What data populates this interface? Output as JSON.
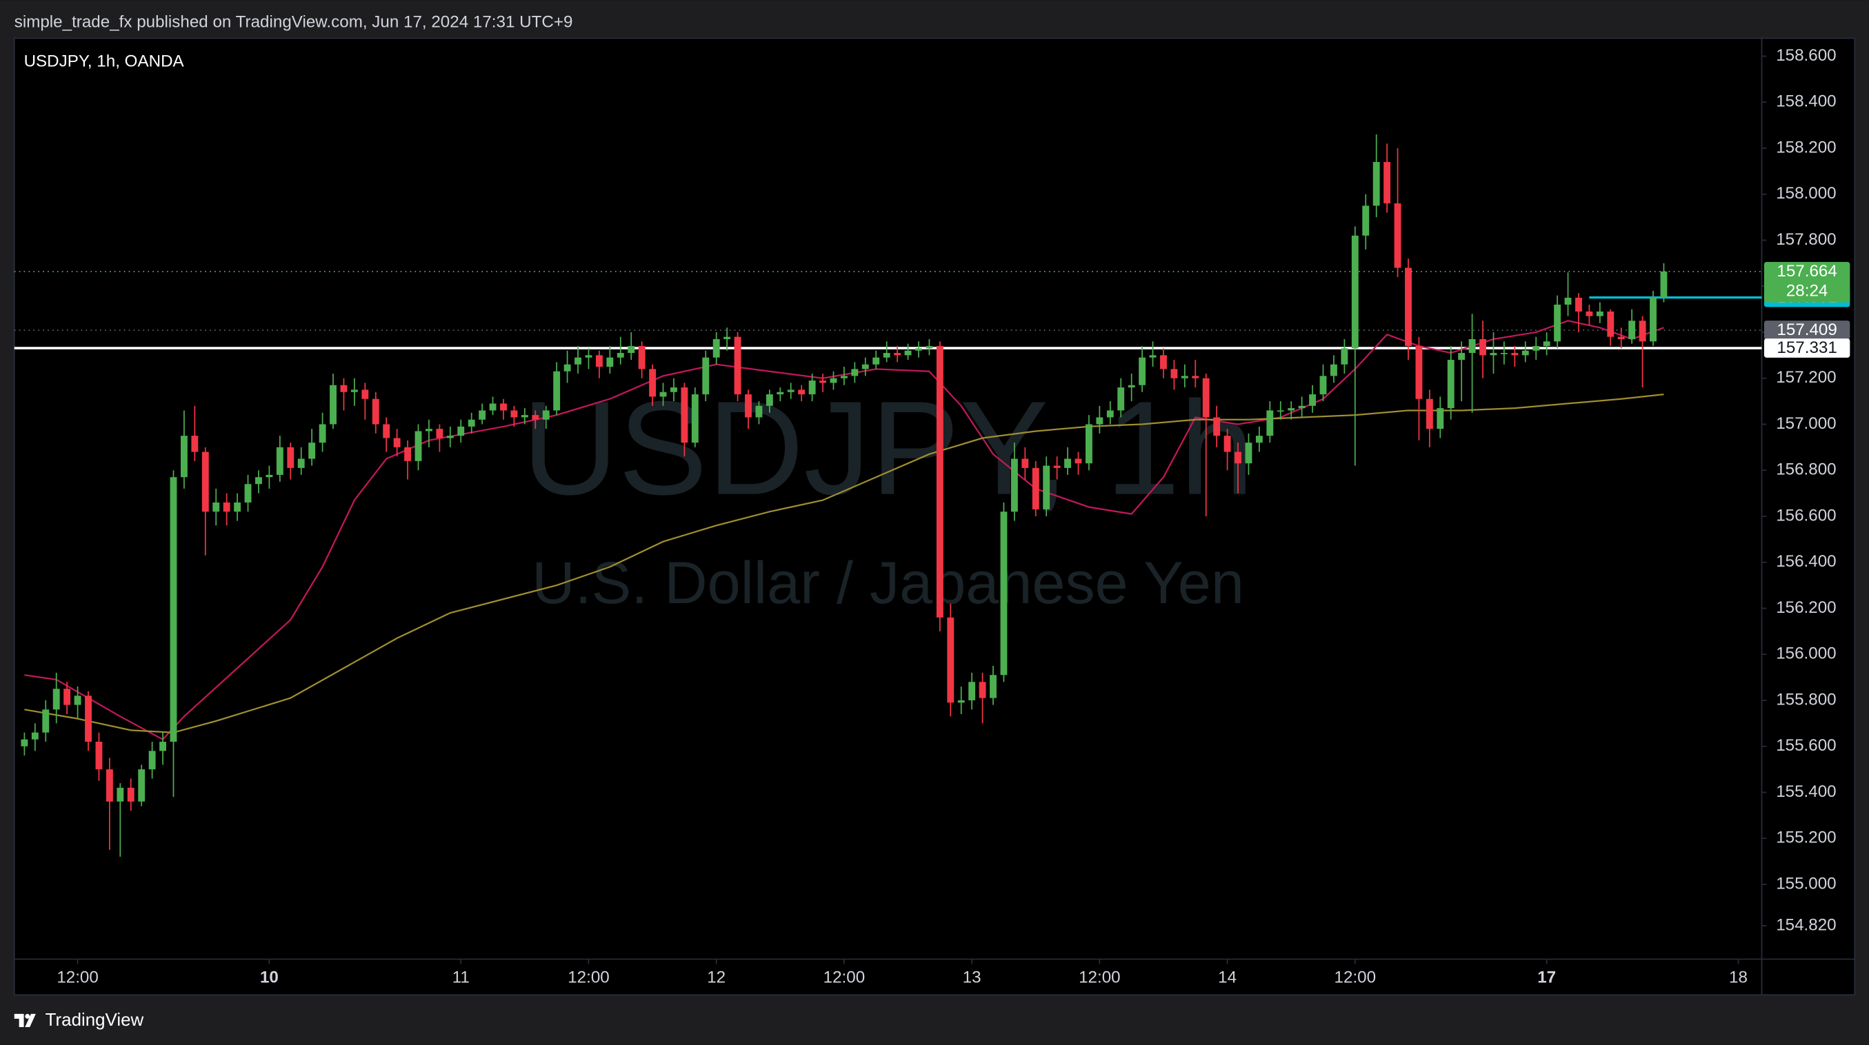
{
  "header": {
    "text": "simple_trade_fx published on TradingView.com, Jun 17, 2024 17:31 UTC+9"
  },
  "footer": {
    "brand": "TradingView"
  },
  "chart_data": {
    "type": "candlestick",
    "symbol_label": "USDJPY, 1h, OANDA",
    "watermark": "USDJPY, 1h",
    "watermark_subtitle": "U.S. Dollar / Japanese Yen",
    "up_color": "#4caf50",
    "down_color": "#f23645",
    "grid": false,
    "xlim": [
      -0.95,
      163.2
    ],
    "xticks": [
      {
        "value": 5,
        "label": "12:00"
      },
      {
        "value": 23,
        "label": "10",
        "bold": true
      },
      {
        "value": 41,
        "label": "11"
      },
      {
        "value": 53,
        "label": "12:00"
      },
      {
        "value": 65,
        "label": "12"
      },
      {
        "value": 77,
        "label": "12:00"
      },
      {
        "value": 89,
        "label": "13"
      },
      {
        "value": 101,
        "label": "12:00"
      },
      {
        "value": 113,
        "label": "14"
      },
      {
        "value": 125,
        "label": "12:00"
      },
      {
        "value": 143,
        "label": "17",
        "bold": true
      },
      {
        "value": 161,
        "label": "18"
      }
    ],
    "ylim": [
      154.675,
      158.678
    ],
    "yticks": [
      {
        "value": 158.6,
        "label": "158.600"
      },
      {
        "value": 158.4,
        "label": "158.400"
      },
      {
        "value": 158.2,
        "label": "158.200"
      },
      {
        "value": 158.0,
        "label": "158.000"
      },
      {
        "value": 157.8,
        "label": "157.800"
      },
      {
        "value": 157.6,
        "label": "157.600"
      },
      {
        "value": 157.4,
        "label": "157.400"
      },
      {
        "value": 157.2,
        "label": "157.200"
      },
      {
        "value": 157.0,
        "label": "157.000"
      },
      {
        "value": 156.8,
        "label": "156.800"
      },
      {
        "value": 156.6,
        "label": "156.600"
      },
      {
        "value": 156.4,
        "label": "156.400"
      },
      {
        "value": 156.2,
        "label": "156.200"
      },
      {
        "value": 156.0,
        "label": "156.000"
      },
      {
        "value": 155.8,
        "label": "155.800"
      },
      {
        "value": 155.6,
        "label": "155.600"
      },
      {
        "value": 155.4,
        "label": "155.400"
      },
      {
        "value": 155.2,
        "label": "155.200"
      },
      {
        "value": 155.0,
        "label": "155.000"
      },
      {
        "value": 154.82,
        "label": "154.820"
      }
    ],
    "ohlc": [
      [
        155.6,
        155.66,
        155.56,
        155.63
      ],
      [
        155.63,
        155.7,
        155.58,
        155.66
      ],
      [
        155.66,
        155.8,
        155.62,
        155.76
      ],
      [
        155.76,
        155.92,
        155.7,
        155.85
      ],
      [
        155.85,
        155.88,
        155.74,
        155.78
      ],
      [
        155.78,
        155.86,
        155.72,
        155.82
      ],
      [
        155.82,
        155.84,
        155.58,
        155.62
      ],
      [
        155.62,
        155.66,
        155.45,
        155.5
      ],
      [
        155.5,
        155.55,
        155.15,
        155.36
      ],
      [
        155.36,
        155.44,
        155.12,
        155.42
      ],
      [
        155.42,
        155.46,
        155.32,
        155.36
      ],
      [
        155.36,
        155.52,
        155.34,
        155.5
      ],
      [
        155.5,
        155.62,
        155.46,
        155.58
      ],
      [
        155.58,
        155.66,
        155.52,
        155.62
      ],
      [
        155.62,
        156.8,
        155.38,
        156.77
      ],
      [
        156.77,
        157.06,
        156.72,
        156.95
      ],
      [
        156.95,
        157.08,
        156.84,
        156.88
      ],
      [
        156.88,
        156.9,
        156.43,
        156.62
      ],
      [
        156.62,
        156.72,
        156.56,
        156.66
      ],
      [
        156.66,
        156.7,
        156.56,
        156.62
      ],
      [
        156.62,
        156.7,
        156.58,
        156.66
      ],
      [
        156.66,
        156.78,
        156.62,
        156.74
      ],
      [
        156.74,
        156.8,
        156.7,
        156.77
      ],
      [
        156.77,
        156.82,
        156.72,
        156.78
      ],
      [
        156.78,
        156.95,
        156.75,
        156.9
      ],
      [
        156.9,
        156.92,
        156.76,
        156.81
      ],
      [
        156.81,
        156.9,
        156.78,
        156.85
      ],
      [
        156.85,
        156.98,
        156.82,
        156.92
      ],
      [
        156.92,
        157.05,
        156.88,
        157.0
      ],
      [
        157.0,
        157.22,
        156.98,
        157.17
      ],
      [
        157.17,
        157.2,
        157.06,
        157.14
      ],
      [
        157.14,
        157.2,
        157.08,
        157.15
      ],
      [
        157.15,
        157.18,
        157.02,
        157.11
      ],
      [
        157.11,
        157.14,
        156.96,
        157.0
      ],
      [
        157.0,
        157.03,
        156.88,
        156.94
      ],
      [
        156.94,
        156.98,
        156.86,
        156.9
      ],
      [
        156.9,
        156.93,
        156.76,
        156.84
      ],
      [
        156.84,
        157.0,
        156.8,
        156.97
      ],
      [
        156.97,
        157.02,
        156.9,
        156.98
      ],
      [
        156.98,
        157.0,
        156.88,
        156.94
      ],
      [
        156.94,
        156.99,
        156.9,
        156.95
      ],
      [
        156.95,
        157.02,
        156.92,
        156.99
      ],
      [
        156.99,
        157.05,
        156.96,
        157.02
      ],
      [
        157.02,
        157.09,
        157.0,
        157.06
      ],
      [
        157.06,
        157.12,
        157.04,
        157.09
      ],
      [
        157.09,
        157.11,
        157.02,
        157.06
      ],
      [
        157.06,
        157.08,
        156.99,
        157.03
      ],
      [
        157.03,
        157.07,
        157.0,
        157.04
      ],
      [
        157.04,
        157.06,
        156.98,
        157.02
      ],
      [
        157.02,
        157.08,
        156.98,
        157.06
      ],
      [
        157.06,
        157.27,
        157.04,
        157.23
      ],
      [
        157.23,
        157.32,
        157.18,
        157.26
      ],
      [
        157.26,
        157.34,
        157.22,
        157.29
      ],
      [
        157.29,
        157.33,
        157.24,
        157.3
      ],
      [
        157.3,
        157.32,
        157.2,
        157.25
      ],
      [
        157.25,
        157.34,
        157.22,
        157.29
      ],
      [
        157.29,
        157.38,
        157.26,
        157.31
      ],
      [
        157.31,
        157.4,
        157.28,
        157.34
      ],
      [
        157.34,
        157.36,
        157.2,
        157.24
      ],
      [
        157.24,
        157.26,
        157.08,
        157.12
      ],
      [
        157.12,
        157.18,
        157.08,
        157.14
      ],
      [
        157.14,
        157.2,
        157.1,
        157.16
      ],
      [
        157.16,
        157.18,
        156.86,
        156.92
      ],
      [
        156.92,
        157.16,
        156.9,
        157.13
      ],
      [
        157.13,
        157.32,
        157.1,
        157.29
      ],
      [
        157.29,
        157.4,
        157.26,
        157.37
      ],
      [
        157.37,
        157.42,
        157.32,
        157.38
      ],
      [
        157.38,
        157.4,
        157.1,
        157.13
      ],
      [
        157.13,
        157.15,
        156.98,
        157.03
      ],
      [
        157.03,
        157.1,
        157.0,
        157.08
      ],
      [
        157.08,
        157.15,
        157.05,
        157.13
      ],
      [
        157.13,
        157.16,
        157.1,
        157.14
      ],
      [
        157.14,
        157.18,
        157.11,
        157.15
      ],
      [
        157.15,
        157.17,
        157.1,
        157.13
      ],
      [
        157.13,
        157.22,
        157.1,
        157.19
      ],
      [
        157.19,
        157.22,
        157.14,
        157.18
      ],
      [
        157.18,
        157.23,
        157.15,
        157.2
      ],
      [
        157.2,
        157.25,
        157.17,
        157.21
      ],
      [
        157.21,
        157.27,
        157.18,
        157.24
      ],
      [
        157.24,
        157.29,
        157.21,
        157.26
      ],
      [
        157.26,
        157.32,
        157.24,
        157.29
      ],
      [
        157.29,
        157.36,
        157.27,
        157.31
      ],
      [
        157.31,
        157.34,
        157.27,
        157.3
      ],
      [
        157.3,
        157.35,
        157.28,
        157.32
      ],
      [
        157.32,
        157.36,
        157.29,
        157.33
      ],
      [
        157.33,
        157.37,
        157.3,
        157.34
      ],
      [
        157.34,
        157.36,
        156.1,
        156.16
      ],
      [
        156.16,
        156.22,
        155.73,
        155.79
      ],
      [
        155.79,
        155.86,
        155.74,
        155.8
      ],
      [
        155.8,
        155.92,
        155.76,
        155.88
      ],
      [
        155.88,
        155.92,
        155.7,
        155.81
      ],
      [
        155.81,
        155.95,
        155.78,
        155.91
      ],
      [
        155.91,
        156.66,
        155.88,
        156.62
      ],
      [
        156.62,
        156.92,
        156.58,
        156.85
      ],
      [
        156.85,
        156.9,
        156.76,
        156.81
      ],
      [
        156.81,
        156.84,
        156.6,
        156.63
      ],
      [
        156.63,
        156.86,
        156.6,
        156.82
      ],
      [
        156.82,
        156.86,
        156.76,
        156.81
      ],
      [
        156.81,
        156.9,
        156.78,
        156.85
      ],
      [
        156.85,
        156.88,
        156.78,
        156.83
      ],
      [
        156.83,
        157.04,
        156.8,
        157.0
      ],
      [
        157.0,
        157.08,
        156.96,
        157.03
      ],
      [
        157.03,
        157.1,
        157.0,
        157.06
      ],
      [
        157.06,
        157.2,
        157.03,
        157.16
      ],
      [
        157.16,
        157.22,
        157.1,
        157.17
      ],
      [
        157.17,
        157.34,
        157.14,
        157.29
      ],
      [
        157.29,
        157.36,
        157.25,
        157.3
      ],
      [
        157.3,
        157.33,
        157.2,
        157.24
      ],
      [
        157.24,
        157.28,
        157.15,
        157.2
      ],
      [
        157.2,
        157.26,
        157.16,
        157.21
      ],
      [
        157.21,
        157.28,
        157.16,
        157.2
      ],
      [
        157.2,
        157.22,
        156.6,
        157.03
      ],
      [
        157.03,
        157.08,
        156.9,
        156.95
      ],
      [
        156.95,
        156.98,
        156.8,
        156.88
      ],
      [
        156.88,
        156.92,
        156.7,
        156.83
      ],
      [
        156.83,
        156.96,
        156.78,
        156.92
      ],
      [
        156.92,
        156.99,
        156.88,
        156.95
      ],
      [
        156.95,
        157.1,
        156.92,
        157.06
      ],
      [
        157.06,
        157.1,
        157.02,
        157.06
      ],
      [
        157.06,
        157.1,
        157.02,
        157.07
      ],
      [
        157.07,
        157.12,
        157.03,
        157.08
      ],
      [
        157.08,
        157.17,
        157.05,
        157.13
      ],
      [
        157.13,
        157.26,
        157.1,
        157.21
      ],
      [
        157.21,
        157.3,
        157.18,
        157.26
      ],
      [
        157.26,
        157.37,
        157.22,
        157.33
      ],
      [
        157.33,
        157.86,
        156.82,
        157.82
      ],
      [
        157.82,
        158.0,
        157.76,
        157.95
      ],
      [
        157.95,
        158.26,
        157.9,
        158.14
      ],
      [
        158.14,
        158.22,
        157.92,
        157.96
      ],
      [
        157.96,
        158.2,
        157.64,
        157.68
      ],
      [
        157.68,
        157.72,
        157.28,
        157.34
      ],
      [
        157.34,
        157.38,
        156.93,
        157.11
      ],
      [
        157.11,
        157.15,
        156.9,
        156.98
      ],
      [
        156.98,
        157.12,
        156.94,
        157.07
      ],
      [
        157.07,
        157.34,
        157.02,
        157.28
      ],
      [
        157.28,
        157.36,
        157.1,
        157.31
      ],
      [
        157.31,
        157.48,
        157.05,
        157.37
      ],
      [
        157.37,
        157.45,
        157.2,
        157.3
      ],
      [
        157.3,
        157.4,
        157.22,
        157.31
      ],
      [
        157.31,
        157.36,
        157.26,
        157.31
      ],
      [
        157.31,
        157.34,
        157.25,
        157.3
      ],
      [
        157.3,
        157.36,
        157.27,
        157.32
      ],
      [
        157.32,
        157.38,
        157.28,
        157.34
      ],
      [
        157.34,
        157.4,
        157.3,
        157.36
      ],
      [
        157.36,
        157.56,
        157.33,
        157.52
      ],
      [
        157.52,
        157.66,
        157.47,
        157.55
      ],
      [
        157.55,
        157.57,
        157.4,
        157.49
      ],
      [
        157.49,
        157.52,
        157.43,
        157.47
      ],
      [
        157.47,
        157.53,
        157.44,
        157.49
      ],
      [
        157.49,
        157.5,
        157.34,
        157.38
      ],
      [
        157.38,
        157.42,
        157.33,
        157.37
      ],
      [
        157.37,
        157.5,
        157.35,
        157.45
      ],
      [
        157.45,
        157.47,
        157.16,
        157.36
      ],
      [
        157.36,
        157.58,
        157.34,
        157.55
      ],
      [
        157.55,
        157.7,
        157.53,
        157.664
      ]
    ],
    "series": [
      {
        "color": "#c2185b",
        "x": [
          0,
          3,
          6,
          9,
          13,
          15,
          20,
          25,
          28,
          31,
          34,
          38,
          45,
          50,
          55,
          60,
          65,
          70,
          75,
          80,
          85,
          88,
          91,
          95,
          100,
          104,
          107,
          110,
          114,
          118,
          122,
          125,
          128,
          131,
          134,
          138,
          142,
          145,
          148,
          151,
          154
        ],
        "values": [
          155.91,
          155.89,
          155.81,
          155.73,
          155.63,
          155.73,
          155.94,
          156.15,
          156.38,
          156.67,
          156.85,
          156.93,
          156.99,
          157.04,
          157.11,
          157.21,
          157.26,
          157.23,
          157.2,
          157.24,
          157.23,
          157.08,
          156.87,
          156.72,
          156.64,
          156.61,
          156.77,
          157.03,
          157.0,
          157.03,
          157.11,
          157.24,
          157.39,
          157.34,
          157.31,
          157.37,
          157.4,
          157.45,
          157.42,
          157.37,
          157.42
        ]
      },
      {
        "color": "#a08f2f",
        "x": [
          0,
          5,
          10,
          14,
          18,
          25,
          30,
          35,
          40,
          45,
          50,
          55,
          60,
          65,
          70,
          75,
          80,
          85,
          90,
          95,
          100,
          105,
          110,
          115,
          120,
          125,
          130,
          135,
          140,
          145,
          150,
          154
        ],
        "values": [
          155.76,
          155.72,
          155.67,
          155.66,
          155.71,
          155.81,
          155.94,
          156.07,
          156.18,
          156.24,
          156.3,
          156.38,
          156.49,
          156.56,
          156.62,
          156.67,
          156.77,
          156.87,
          156.94,
          156.97,
          156.99,
          157.0,
          157.02,
          157.02,
          157.03,
          157.04,
          157.06,
          157.06,
          157.07,
          157.09,
          157.11,
          157.13
        ]
      }
    ],
    "levels": [
      {
        "value": 157.551,
        "color": "#00bcd4",
        "text_color": "#ffffff",
        "line": "solid",
        "start_x": 147
      },
      {
        "value": 157.409,
        "color": "#5d606b",
        "text_color": "#ffffff",
        "line": "dotted"
      },
      {
        "value": 157.331,
        "color": "#ffffff",
        "text_color": "#131722",
        "line": "solid"
      },
      {
        "value": 157.664,
        "color": "#4caf50",
        "text_color": "#ffffff",
        "line": "dotted"
      }
    ],
    "countdown": "28:24"
  }
}
